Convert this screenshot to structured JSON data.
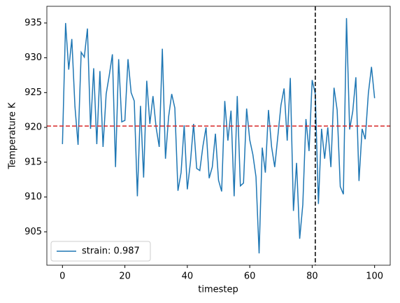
{
  "chart_data": {
    "type": "line",
    "xlabel": "timestep",
    "ylabel": "Temperature K",
    "x": [
      0,
      1,
      2,
      3,
      4,
      5,
      6,
      7,
      8,
      9,
      10,
      11,
      12,
      13,
      14,
      15,
      16,
      17,
      18,
      19,
      20,
      21,
      22,
      23,
      24,
      25,
      26,
      27,
      28,
      29,
      30,
      31,
      32,
      33,
      34,
      35,
      36,
      37,
      38,
      39,
      40,
      41,
      42,
      43,
      44,
      45,
      46,
      47,
      48,
      49,
      50,
      51,
      52,
      53,
      54,
      55,
      56,
      57,
      58,
      59,
      60,
      61,
      62,
      63,
      64,
      65,
      66,
      67,
      68,
      69,
      70,
      71,
      72,
      73,
      74,
      75,
      76,
      77,
      78,
      79,
      80,
      81,
      82,
      83,
      84,
      85,
      86,
      87,
      88,
      89,
      90,
      91,
      92,
      93,
      94,
      95,
      96,
      97,
      98,
      99,
      100
    ],
    "series": [
      {
        "name": "strain: 0.987",
        "color": "#1f77b4",
        "values": [
          917.6,
          935,
          928.3,
          932.7,
          923,
          917.5,
          930.8,
          930.1,
          934.2,
          919.8,
          928.5,
          917.6,
          928.1,
          917.2,
          924.8,
          927.5,
          930.5,
          914.3,
          929.8,
          920.8,
          921,
          929.8,
          925,
          923.8,
          910.1,
          923.1,
          912.8,
          926.7,
          920.5,
          924.5,
          920,
          917.2,
          931.3,
          915.5,
          921.5,
          924.8,
          922.8,
          910.9,
          913.5,
          920.3,
          911.1,
          915,
          920.5,
          914.1,
          913.8,
          917.3,
          920,
          912.7,
          914.3,
          919.1,
          912.4,
          910.8,
          923.8,
          918.1,
          922.4,
          910.1,
          924.5,
          911.6,
          912,
          922.7,
          918.2,
          916.1,
          912.9,
          901.9,
          917.1,
          913.5,
          922.5,
          917.2,
          914.3,
          918.7,
          923.2,
          925.6,
          918.1,
          927.1,
          908,
          914.9,
          904,
          908.9,
          921.2,
          916.6,
          926.8,
          924.8,
          909,
          919.8,
          915.5,
          920,
          914.3,
          925.7,
          922.5,
          911.5,
          910.4,
          935.7,
          919.7,
          922.3,
          927.2,
          912.3,
          919.8,
          918.3,
          924.9,
          928.7,
          924.2
        ]
      }
    ],
    "reference_lines": [
      {
        "axis": "y",
        "value": 920.2,
        "color": "#d62728"
      },
      {
        "axis": "x",
        "value": 81,
        "color": "#000000"
      }
    ],
    "xlim": [
      -5,
      105
    ],
    "ylim": [
      900.2,
      937.4
    ],
    "xticks": [
      0,
      20,
      40,
      60,
      80,
      100
    ],
    "yticks": [
      905,
      910,
      915,
      920,
      925,
      930,
      935
    ],
    "legend": "lower left",
    "grid": false
  }
}
